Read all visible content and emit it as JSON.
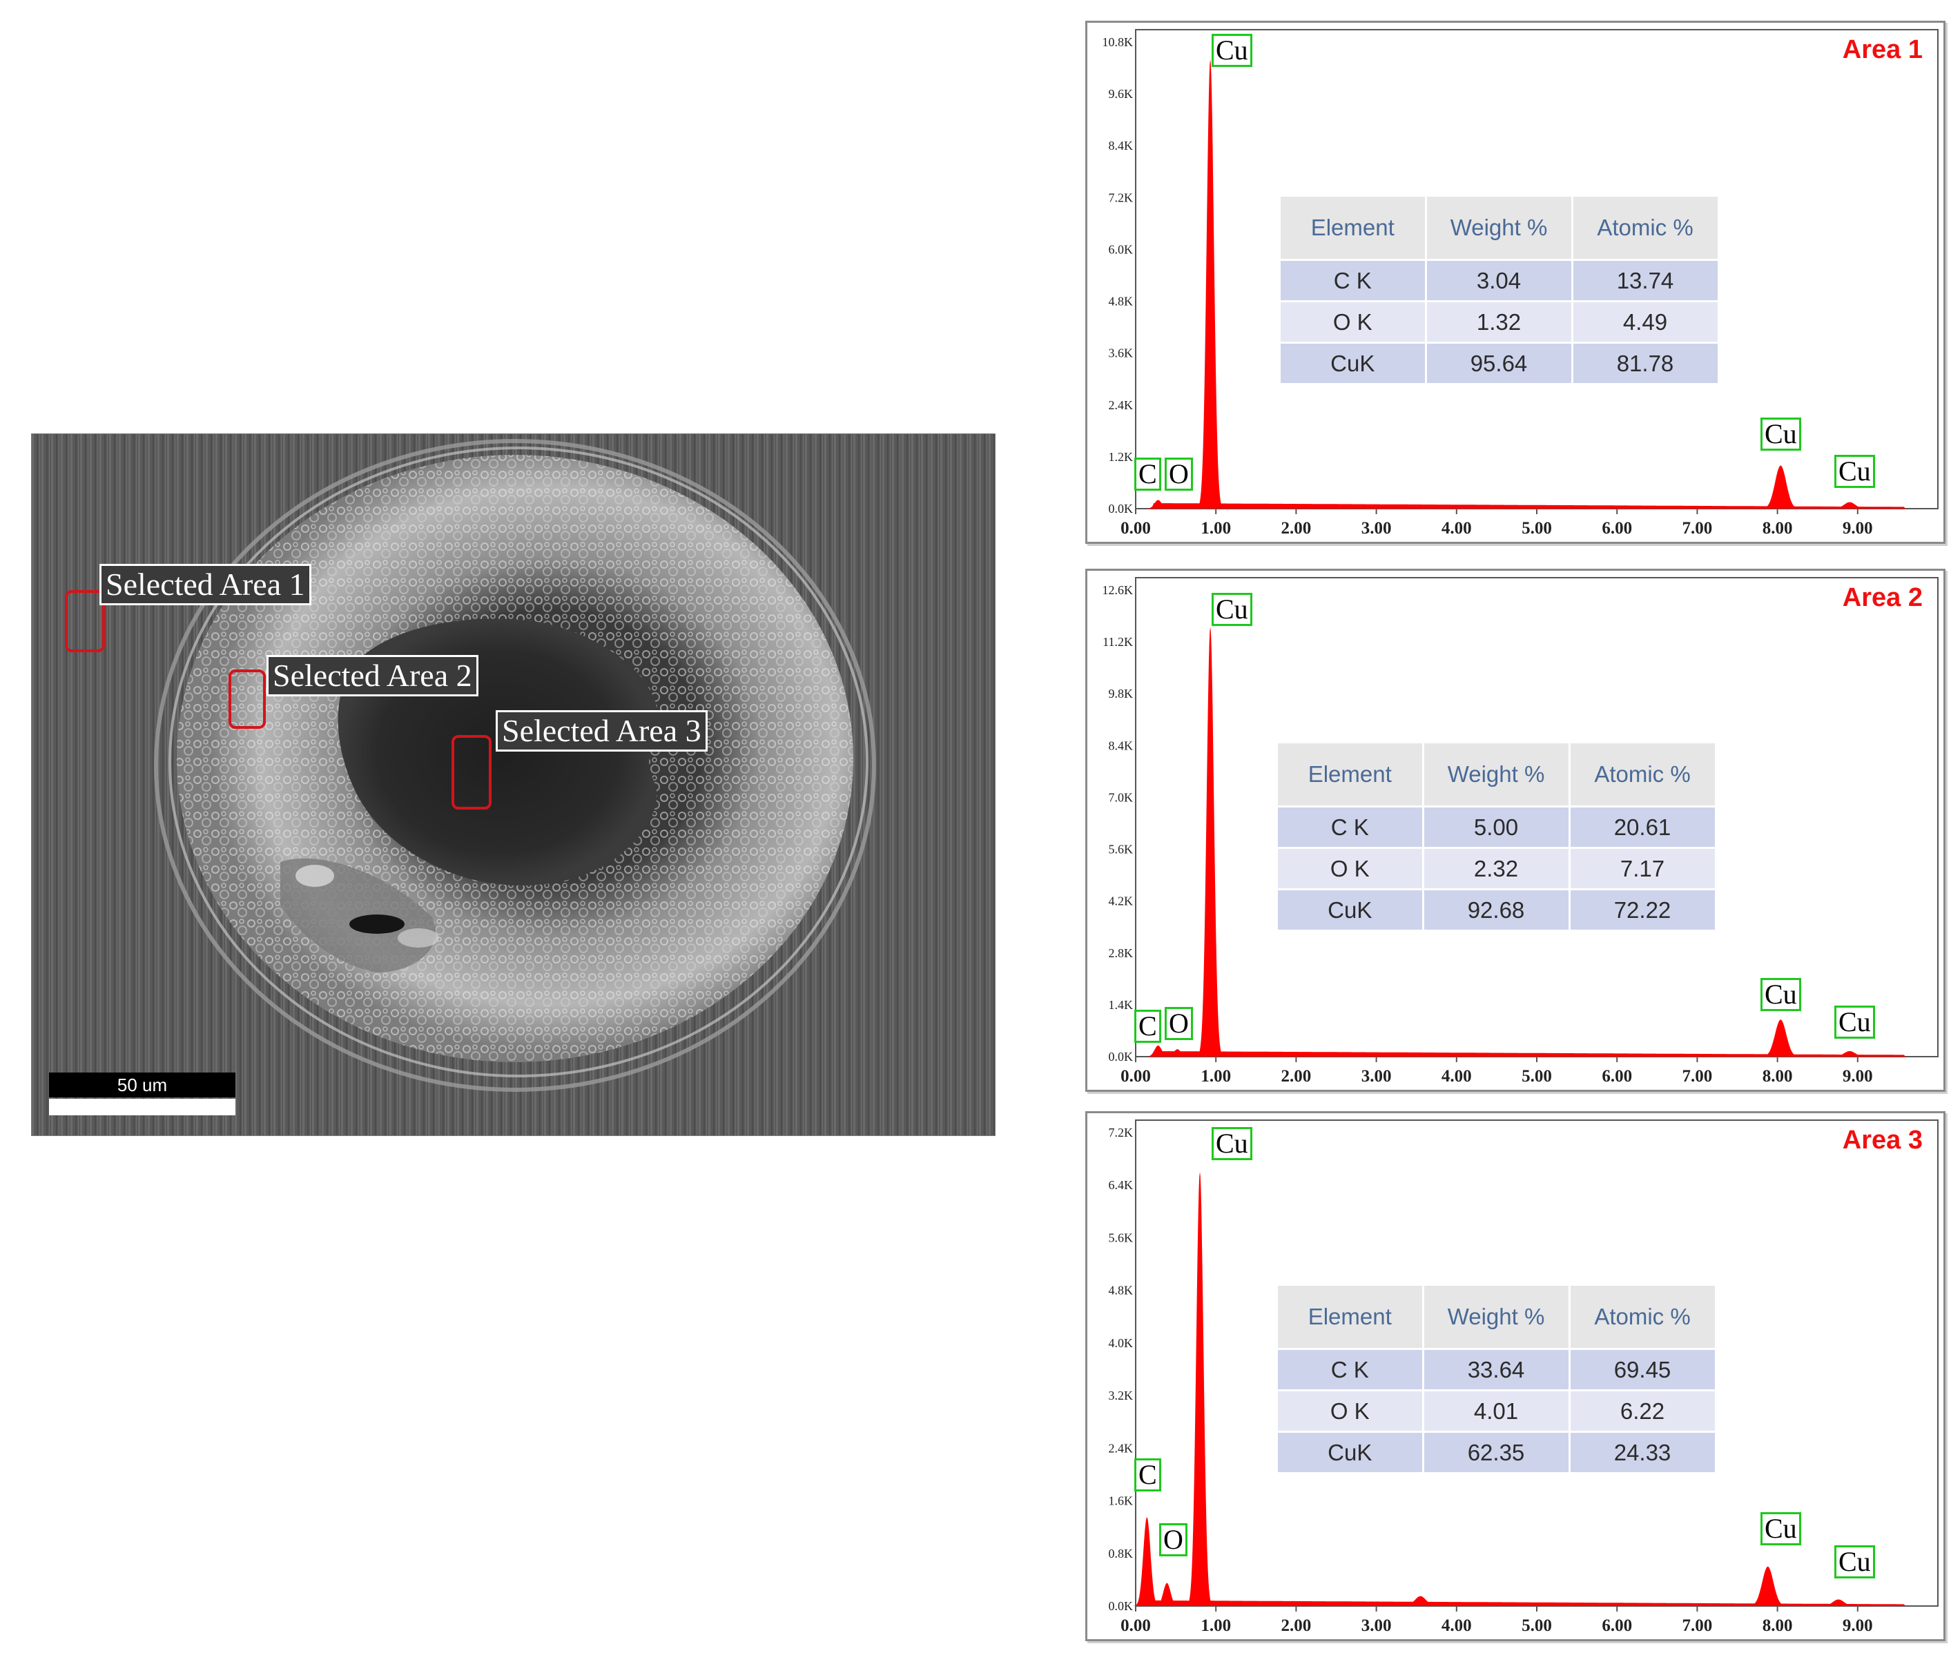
{
  "sem": {
    "labels": [
      "Selected Area 1",
      "Selected Area 2",
      "Selected Area 3"
    ],
    "scale_bar": "50 um"
  },
  "colors": {
    "spectrum": "#ff0000",
    "peak_box": "#1ec81e",
    "area_title": "#f01010",
    "selection_box": "#d4141a"
  },
  "chart_data": [
    {
      "type": "area",
      "title": "Area 1",
      "xlim": [
        0,
        10
      ],
      "ylim": [
        0,
        10.8
      ],
      "x_ticks": [
        "0.00",
        "1.00",
        "2.00",
        "3.00",
        "4.00",
        "5.00",
        "6.00",
        "7.00",
        "8.00",
        "9.00"
      ],
      "y_ticks": [
        "0.0K",
        "1.2K",
        "2.4K",
        "3.6K",
        "4.8K",
        "6.0K",
        "7.2K",
        "8.4K",
        "9.6K",
        "10.8K"
      ],
      "peaks": [
        {
          "element": "C",
          "energy": 0.28,
          "counts": 0.2
        },
        {
          "element": "O",
          "energy": 0.52,
          "counts": 0.1
        },
        {
          "element": "Cu",
          "energy": 0.93,
          "counts": 10.4
        },
        {
          "element": "Cu",
          "energy": 8.04,
          "counts": 1.0
        },
        {
          "element": "Cu",
          "energy": 8.9,
          "counts": 0.15
        }
      ],
      "peak_labels": [
        "C",
        "O",
        "Cu",
        "Cu",
        "Cu"
      ],
      "table": {
        "headers": [
          "Element",
          "Weight %",
          "Atomic %"
        ],
        "rows": [
          [
            "C K",
            "3.04",
            "13.74"
          ],
          [
            "O K",
            "1.32",
            "4.49"
          ],
          [
            "CuK",
            "95.64",
            "81.78"
          ]
        ]
      }
    },
    {
      "type": "area",
      "title": "Area 2",
      "xlim": [
        0,
        10
      ],
      "ylim": [
        0,
        12.6
      ],
      "x_ticks": [
        "0.00",
        "1.00",
        "2.00",
        "3.00",
        "4.00",
        "5.00",
        "6.00",
        "7.00",
        "8.00",
        "9.00"
      ],
      "y_ticks": [
        "0.0K",
        "1.4K",
        "2.8K",
        "4.2K",
        "5.6K",
        "7.0K",
        "8.4K",
        "9.8K",
        "11.2K",
        "12.6K"
      ],
      "peaks": [
        {
          "element": "C",
          "energy": 0.28,
          "counts": 0.3
        },
        {
          "element": "O",
          "energy": 0.52,
          "counts": 0.2
        },
        {
          "element": "Cu",
          "energy": 0.93,
          "counts": 11.6
        },
        {
          "element": "Cu",
          "energy": 8.04,
          "counts": 1.0
        },
        {
          "element": "Cu",
          "energy": 8.9,
          "counts": 0.15
        }
      ],
      "peak_labels": [
        "C",
        "O",
        "Cu",
        "Cu",
        "Cu"
      ],
      "table": {
        "headers": [
          "Element",
          "Weight %",
          "Atomic %"
        ],
        "rows": [
          [
            "C K",
            "5.00",
            "20.61"
          ],
          [
            "O K",
            "2.32",
            "7.17"
          ],
          [
            "CuK",
            "92.68",
            "72.22"
          ]
        ]
      }
    },
    {
      "type": "area",
      "title": "Area 3",
      "xlim": [
        0,
        10
      ],
      "ylim": [
        0,
        7.2
      ],
      "x_ticks": [
        "0.00",
        "1.00",
        "2.00",
        "3.00",
        "4.00",
        "5.00",
        "6.00",
        "7.00",
        "8.00",
        "9.00"
      ],
      "y_ticks": [
        "0.0K",
        "0.8K",
        "1.6K",
        "2.4K",
        "3.2K",
        "4.0K",
        "4.8K",
        "5.6K",
        "6.4K",
        "7.2K"
      ],
      "peaks": [
        {
          "element": "C",
          "energy": 0.14,
          "counts": 1.35
        },
        {
          "element": "O",
          "energy": 0.39,
          "counts": 0.35
        },
        {
          "element": "Cu",
          "energy": 0.8,
          "counts": 6.6
        },
        {
          "element": "Cu",
          "energy": 3.55,
          "counts": 0.15
        },
        {
          "element": "Cu",
          "energy": 7.88,
          "counts": 0.6
        },
        {
          "element": "Cu",
          "energy": 8.76,
          "counts": 0.1
        }
      ],
      "peak_labels": [
        "C",
        "O",
        "Cu",
        "Cu",
        "Cu"
      ],
      "table": {
        "headers": [
          "Element",
          "Weight %",
          "Atomic %"
        ],
        "rows": [
          [
            "C K",
            "33.64",
            "69.45"
          ],
          [
            "O K",
            "4.01",
            "6.22"
          ],
          [
            "CuK",
            "62.35",
            "24.33"
          ]
        ]
      }
    }
  ]
}
